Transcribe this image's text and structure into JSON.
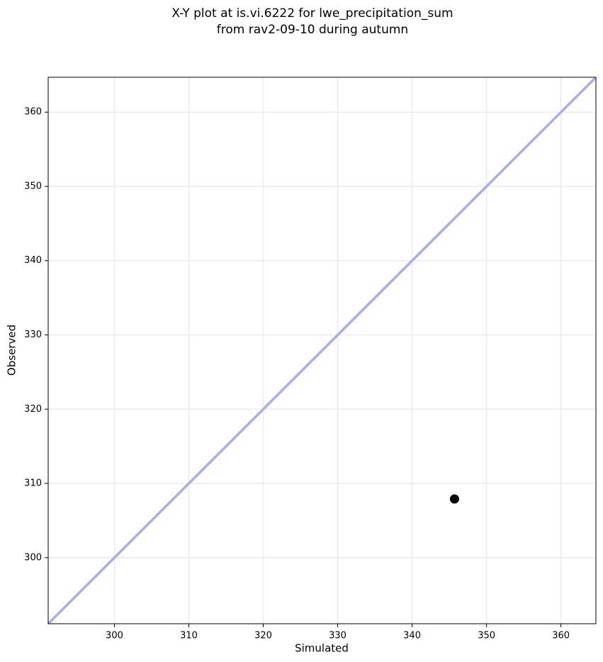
{
  "chart_data": {
    "type": "scatter",
    "title": "X-Y plot at is.vi.6222 for lwe_precipitation_sum",
    "subtitle": "from rav2-09-10 during autumn",
    "x_label": "Simulated",
    "y_label": "Observed",
    "x": [
      345.7
    ],
    "values": [
      307.9
    ],
    "color": "#000000",
    "xlim": [
      291.1,
      364.7
    ],
    "ylim": [
      291.1,
      364.7
    ],
    "xticks": [
      300,
      310,
      320,
      330,
      340,
      350,
      360
    ],
    "yticks": [
      300,
      310,
      320,
      330,
      340,
      350,
      360
    ],
    "grid": true,
    "identity_line": true,
    "identity_color": "#aaaaf7"
  }
}
